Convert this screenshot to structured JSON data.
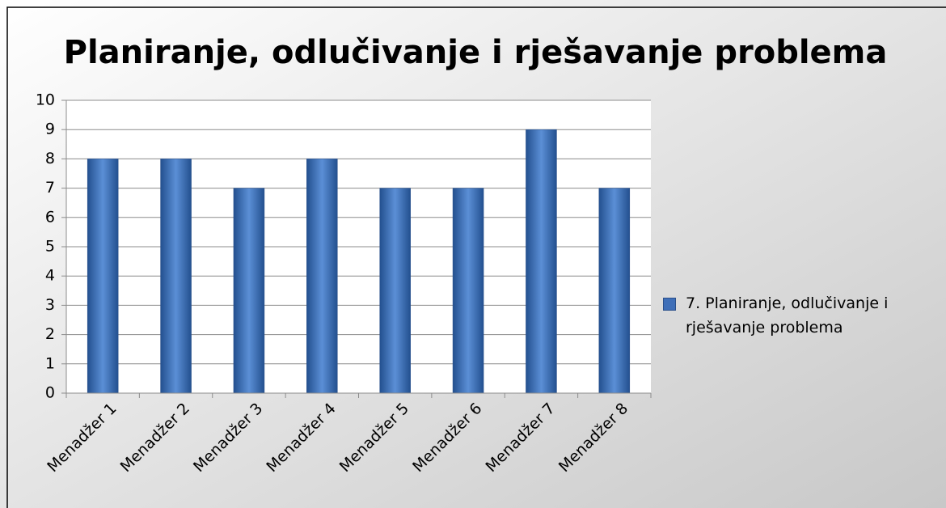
{
  "chart_data": {
    "type": "bar",
    "title": "Planiranje, odlučivanje i rješavanje problema",
    "categories": [
      "Menadžer 1",
      "Menadžer 2",
      "Menadžer 3",
      "Menadžer 4",
      "Menadžer 5",
      "Menadžer 6",
      "Menadžer 7",
      "Menadžer 8"
    ],
    "series": [
      {
        "name": "7. Planiranje, odlučivanje i rješavanje problema",
        "color": "#3f6fb8",
        "values": [
          8,
          8,
          7,
          8,
          7,
          7,
          9,
          7
        ]
      }
    ],
    "ylim": [
      0,
      10
    ],
    "yticks": [
      0,
      1,
      2,
      3,
      4,
      5,
      6,
      7,
      8,
      9,
      10
    ],
    "grid": true,
    "legend": "right"
  }
}
